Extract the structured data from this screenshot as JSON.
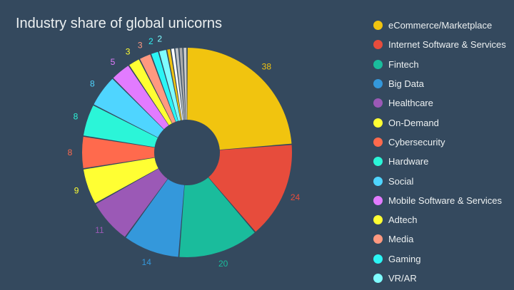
{
  "chart_data": {
    "type": "pie",
    "title": "Industry share of global unicorns",
    "donut": true,
    "categories": [
      "eCommerce/Marketplace",
      "Internet Software & Services",
      "Fintech",
      "Big Data",
      "Healthcare",
      "On-Demand",
      "Cybersecurity",
      "Hardware",
      "Social",
      "Mobile Software & Services",
      "Adtech",
      "Media",
      "Gaming",
      "VR/AR",
      "",
      "",
      "",
      "",
      ""
    ],
    "values": [
      38,
      24,
      20,
      14,
      11,
      9,
      8,
      8,
      8,
      5,
      3,
      3,
      2,
      2,
      1,
      1,
      1,
      1,
      1
    ],
    "colors": [
      "#f1c40f",
      "#e74c3c",
      "#1abc9c",
      "#3498db",
      "#9b59b6",
      "#ffff33",
      "#ff6a4d",
      "#2bf5d8",
      "#4fd5ff",
      "#e27bff",
      "#ffff33",
      "#ff9980",
      "#2bf5f5",
      "#7ffcff",
      "#f1c40f",
      "#ffffff",
      "#bdc3c7",
      "#aaaaaa",
      "#cccccc"
    ],
    "legend_visible_count": 14,
    "legend_placement": "right"
  }
}
